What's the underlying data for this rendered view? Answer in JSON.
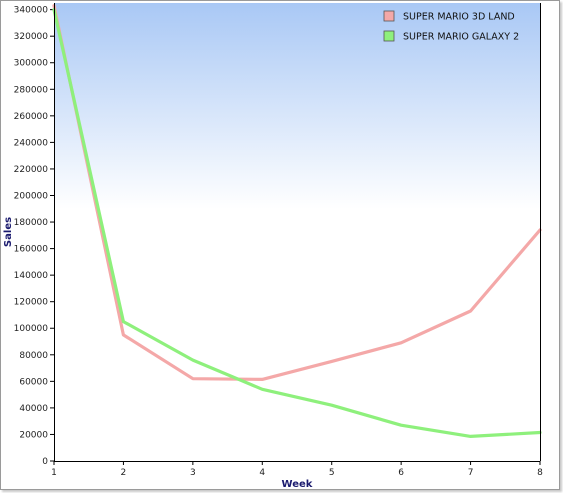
{
  "chart_data": {
    "type": "line",
    "title": "",
    "xlabel": "Week",
    "ylabel": "Sales",
    "x": [
      1,
      2,
      3,
      4,
      5,
      6,
      7,
      8
    ],
    "xlim": [
      1,
      8
    ],
    "ylim": [
      0,
      345000
    ],
    "yticks": [
      0,
      20000,
      40000,
      60000,
      80000,
      100000,
      120000,
      140000,
      160000,
      180000,
      200000,
      220000,
      240000,
      260000,
      280000,
      300000,
      320000,
      340000
    ],
    "grid": false,
    "legend_position": "top-right",
    "series": [
      {
        "name": "SUPER MARIO 3D LAND",
        "color": "#f4a8a8",
        "values": [
          343000,
          95000,
          62000,
          61500,
          75000,
          89000,
          113000,
          174000
        ]
      },
      {
        "name": "SUPER MARIO GALAXY 2",
        "color": "#8ef07c",
        "values": [
          340000,
          105000,
          76000,
          54000,
          42000,
          27000,
          18500,
          21500
        ]
      }
    ],
    "colors": {
      "background_top": "#a9c8f5",
      "background_bottom": "#ffffff"
    }
  }
}
